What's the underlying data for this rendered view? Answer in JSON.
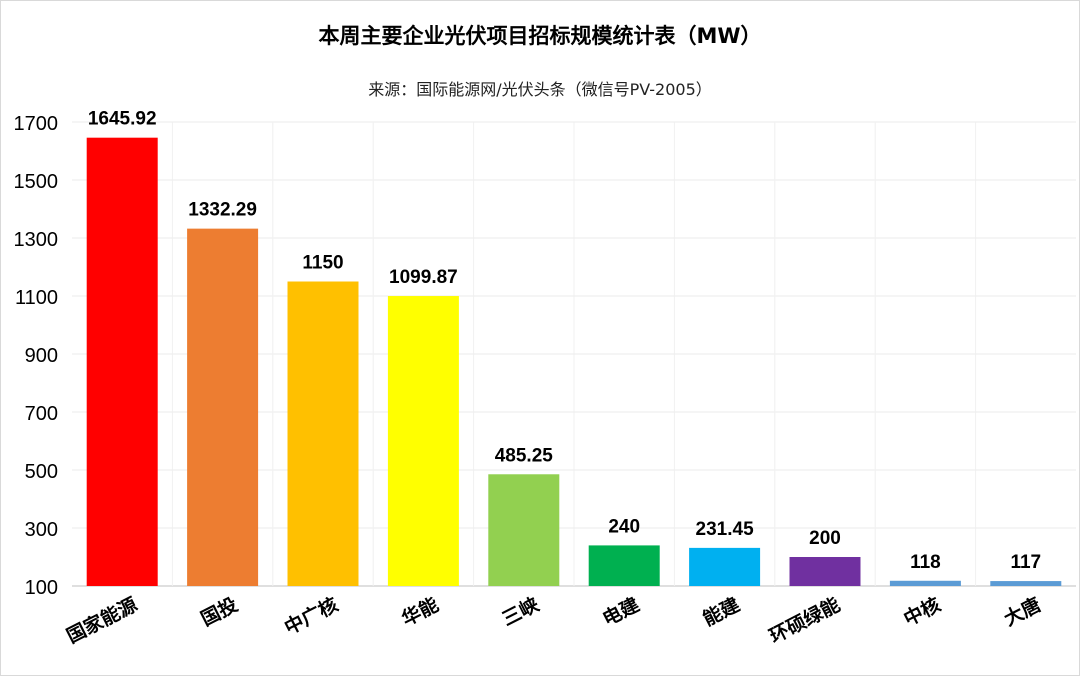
{
  "chart_data": {
    "type": "bar",
    "title": "本周主要企业光伏项目招标规模统计表（MW）",
    "subtitle": "来源：国际能源网/光伏头条（微信号PV-2005）",
    "categories": [
      "国家能源",
      "国投",
      "中广核",
      "华能",
      "三峡",
      "电建",
      "能建",
      "环硕绿能",
      "中核",
      "大唐"
    ],
    "values": [
      1645.92,
      1332.29,
      1150,
      1099.87,
      485.25,
      240,
      231.45,
      200,
      118,
      117
    ],
    "data_labels": [
      "1645.92",
      "1332.29",
      "1150",
      "1099.87",
      "485.25",
      "240",
      "231.45",
      "200",
      "118",
      "117"
    ],
    "bar_colors": [
      "#ff0000",
      "#ed7d31",
      "#ffc000",
      "#ffff00",
      "#92d050",
      "#00b050",
      "#00b0f0",
      "#7030a0",
      "#5b9bd5",
      "#5b9bd5"
    ],
    "yticks": [
      100,
      300,
      500,
      700,
      900,
      1100,
      1300,
      1500,
      1700
    ],
    "ylim": [
      100,
      1700
    ],
    "xlabel": "",
    "ylabel": "",
    "grid": true,
    "legend": "none"
  }
}
